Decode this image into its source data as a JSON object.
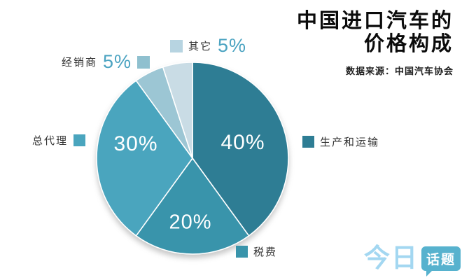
{
  "title": {
    "line1": "中国进口汽车的",
    "line2": "价格构成",
    "source": "数据来源：中国汽车协会"
  },
  "logo": {
    "brand": "今日",
    "badge": "话题"
  },
  "chart_data": {
    "type": "pie",
    "title": "中国进口汽车的价格构成",
    "source_note": "数据来源：中国汽车协会",
    "start_angle": "12-o'clock, clockwise",
    "legend_position": "callout labels around pie",
    "slices": [
      {
        "label": "生产和运输",
        "value": 40,
        "pct": "40%",
        "color": "#2e7d94",
        "swatch": "#2e7d94",
        "pct_inside": true
      },
      {
        "label": "税费",
        "value": 20,
        "pct": "20%",
        "color": "#3994ab",
        "swatch": "#3994ab",
        "pct_inside": true
      },
      {
        "label": "总代理",
        "value": 30,
        "pct": "30%",
        "color": "#4aa5be",
        "swatch": "#4aa5be",
        "pct_inside": true
      },
      {
        "label": "经销商",
        "value": 5,
        "pct": "5%",
        "color": "#9cc6d4",
        "swatch": "#8fc0cf",
        "pct_inside": false
      },
      {
        "label": "其它",
        "value": 5,
        "pct": "5%",
        "color": "#c9dce5",
        "swatch": "#b7d4e1",
        "pct_inside": false
      }
    ],
    "colors": {
      "pct_text": "#4ba3c1",
      "label_text": "#333333",
      "inside_pct_text": "#ffffff",
      "background": "#ffffff"
    }
  }
}
